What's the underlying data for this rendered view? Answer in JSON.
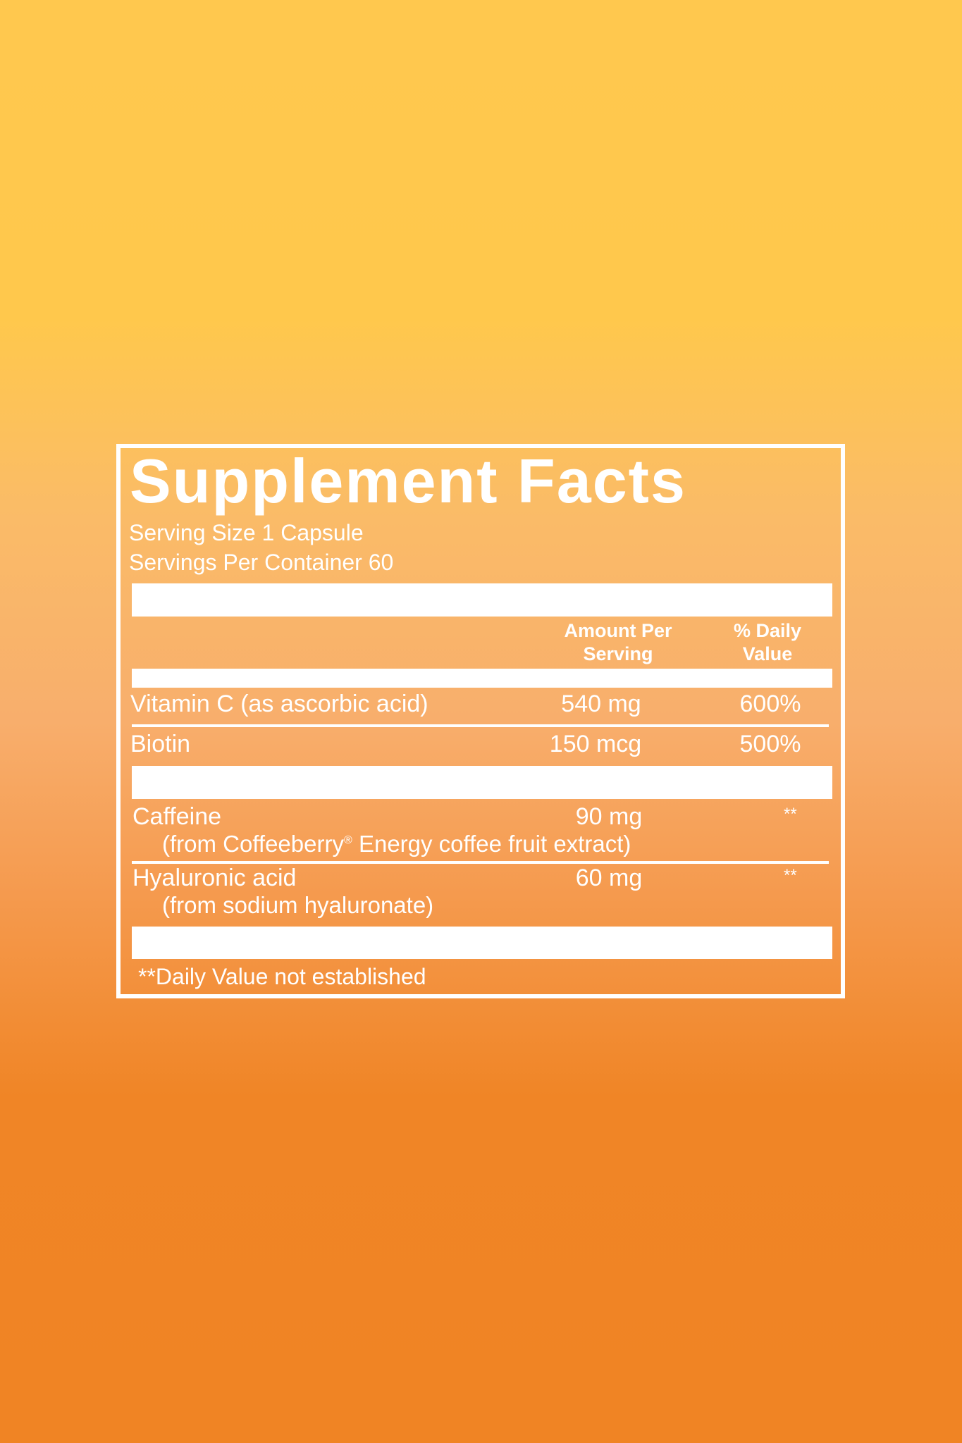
{
  "title": "Supplement Facts",
  "serving_size": "Serving Size 1 Capsule",
  "servings_per_container": "Servings Per Container 60",
  "columns": {
    "amount_line1": "Amount Per",
    "amount_line2": "Serving",
    "dv_line1": "% Daily",
    "dv_line2": "Value"
  },
  "rows": [
    {
      "name": "Vitamin C (as ascorbic acid)",
      "amount": "540 mg",
      "dv": "600%"
    },
    {
      "name": "Biotin",
      "amount": "150 mcg",
      "dv": "500%"
    },
    {
      "name": "Caffeine",
      "sub_pre": "(from Coffeeberry",
      "sub_mark": "®",
      "sub_post": " Energy coffee fruit extract)",
      "amount": "90 mg",
      "dv": "**"
    },
    {
      "name": "Hyaluronic acid",
      "sub": "(from sodium hyaluronate)",
      "amount": "60 mg",
      "dv": "**"
    }
  ],
  "footnote": "**Daily Value not established",
  "colors": {
    "background_top": "#FFC84E",
    "background_bottom": "#F08424",
    "text": "#FFFFFF"
  }
}
